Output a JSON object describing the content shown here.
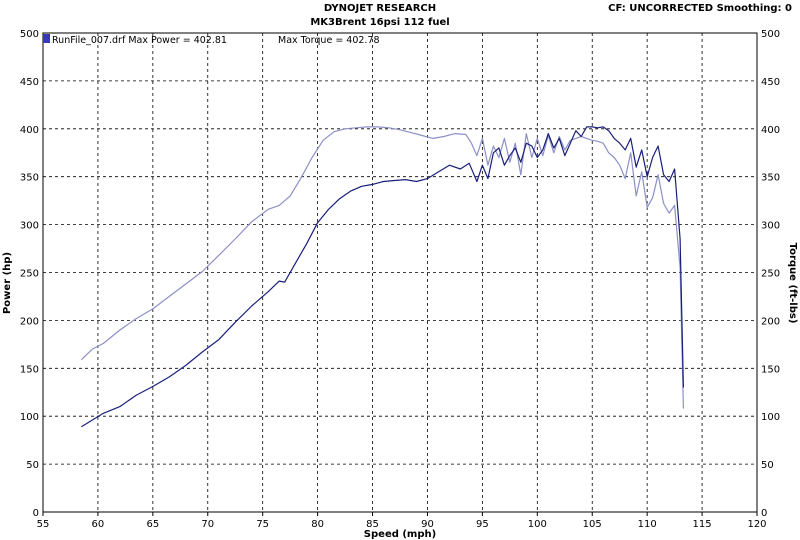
{
  "header": {
    "title": "DYNOJET RESEARCH",
    "subtitle": "MK3Brent 16psi 112 fuel",
    "status": "CF: UNCORRECTED  Smoothing: 0"
  },
  "legend": {
    "run_label": "RunFile_007.drf Max Power = 402.81",
    "torque_label": "Max Torque = 402.78"
  },
  "colors": {
    "power": "#1a1f7a",
    "torque": "#8c90c8",
    "grid": "#000000",
    "legend_box": "#3a3ab8"
  },
  "chart_data": {
    "type": "line",
    "xlabel": "Speed (mph)",
    "ylabel": "Power (hp)",
    "y2label": "Torque (ft-lbs)",
    "xlim": [
      55,
      120
    ],
    "ylim": [
      0,
      500
    ],
    "y2lim": [
      0,
      500
    ],
    "x_ticks": [
      55,
      60,
      65,
      70,
      75,
      80,
      85,
      90,
      95,
      100,
      105,
      110,
      115,
      120
    ],
    "y_ticks": [
      0,
      50,
      100,
      150,
      200,
      250,
      300,
      350,
      400,
      450,
      500
    ],
    "grid": true,
    "series": [
      {
        "name": "Power",
        "axis": "left",
        "x": [
          58.5,
          59.5,
          60.5,
          62,
          63.5,
          65,
          66.5,
          68,
          69.5,
          71,
          72.5,
          74,
          75.5,
          76.5,
          77,
          78,
          79,
          80,
          81,
          82,
          83,
          84,
          85,
          86,
          87,
          88,
          89,
          90,
          91,
          92,
          93,
          93.8,
          94.5,
          95,
          95.5,
          96,
          96.5,
          97,
          97.5,
          98,
          98.5,
          99,
          99.5,
          100,
          100.5,
          101,
          101.5,
          102,
          102.5,
          103,
          103.5,
          104,
          104.5,
          105,
          105.5,
          106,
          106.5,
          107,
          107.5,
          108,
          108.5,
          109,
          109.5,
          110,
          110.5,
          111,
          111.5,
          112,
          112.5,
          113,
          113.3
        ],
        "values": [
          89,
          96,
          103,
          110,
          122,
          131,
          141,
          153,
          167,
          180,
          198,
          215,
          230,
          241,
          240,
          260,
          280,
          302,
          316,
          327,
          335,
          340,
          342,
          345,
          346,
          347,
          345,
          348,
          355,
          362,
          358,
          364,
          345,
          362,
          348,
          375,
          380,
          362,
          372,
          380,
          365,
          385,
          382,
          370,
          378,
          395,
          380,
          390,
          372,
          385,
          398,
          392,
          402,
          402,
          401,
          402,
          398,
          390,
          385,
          378,
          390,
          360,
          378,
          350,
          370,
          382,
          352,
          345,
          358,
          285,
          130
        ]
      },
      {
        "name": "Torque",
        "axis": "right",
        "x": [
          58.5,
          59.5,
          60.5,
          62,
          63.5,
          65,
          66.5,
          68,
          69.5,
          71,
          72.5,
          74,
          75.5,
          76.5,
          77.5,
          78.5,
          79.5,
          80.5,
          81.5,
          82.5,
          83.5,
          84.5,
          85.5,
          86.5,
          87.5,
          88.5,
          89.5,
          90.5,
          91.5,
          92.5,
          93.5,
          94,
          94.5,
          95,
          95.5,
          96,
          96.5,
          97,
          97.5,
          98,
          98.5,
          99,
          99.5,
          100,
          100.5,
          101,
          101.5,
          102,
          102.5,
          103,
          103.5,
          104,
          104.5,
          105,
          105.5,
          106,
          106.5,
          107,
          107.5,
          108,
          108.5,
          109,
          109.5,
          110,
          110.5,
          111,
          111.5,
          112,
          112.5,
          113,
          113.3
        ],
        "values": [
          159,
          170,
          176,
          190,
          202,
          212,
          225,
          238,
          251,
          268,
          285,
          303,
          316,
          320,
          330,
          349,
          370,
          388,
          397,
          400,
          401,
          402,
          402,
          401,
          399,
          396,
          393,
          390,
          392,
          395,
          394,
          385,
          372,
          390,
          362,
          382,
          370,
          390,
          365,
          385,
          352,
          395,
          370,
          390,
          372,
          393,
          375,
          392,
          378,
          388,
          390,
          392,
          390,
          388,
          387,
          385,
          375,
          370,
          362,
          348,
          375,
          330,
          355,
          318,
          328,
          352,
          322,
          312,
          320,
          255,
          108
        ]
      }
    ]
  }
}
